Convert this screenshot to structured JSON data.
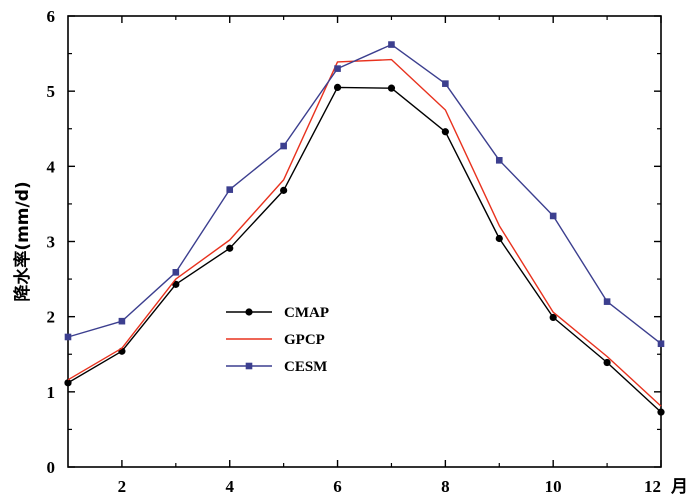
{
  "chart_data": {
    "type": "line",
    "title": "",
    "xlabel": "月",
    "ylabel": "降水率(mm/d)",
    "x": [
      1,
      2,
      3,
      4,
      5,
      6,
      7,
      8,
      9,
      10,
      11,
      12
    ],
    "xlim": [
      1,
      12
    ],
    "ylim": [
      0,
      6
    ],
    "xticks": [
      2,
      4,
      6,
      8,
      10,
      12
    ],
    "yticks": [
      0,
      1,
      2,
      3,
      4,
      5,
      6
    ],
    "grid": false,
    "legend_position": "center-left",
    "series": [
      {
        "name": "CMAP",
        "color": "#000000",
        "marker": "circle",
        "values": [
          1.12,
          1.54,
          2.43,
          2.91,
          3.68,
          5.05,
          5.04,
          4.46,
          3.04,
          1.99,
          1.39,
          0.73
        ]
      },
      {
        "name": "GPCP",
        "color": "#e8321e",
        "marker": "none",
        "values": [
          1.16,
          1.58,
          2.5,
          3.02,
          3.82,
          5.39,
          5.42,
          4.75,
          3.21,
          2.06,
          1.47,
          0.81
        ]
      },
      {
        "name": "CESM",
        "color": "#3c3f8f",
        "marker": "square",
        "values": [
          1.73,
          1.94,
          2.59,
          3.69,
          4.27,
          5.3,
          5.62,
          5.1,
          4.08,
          3.34,
          2.2,
          1.64
        ]
      }
    ]
  }
}
